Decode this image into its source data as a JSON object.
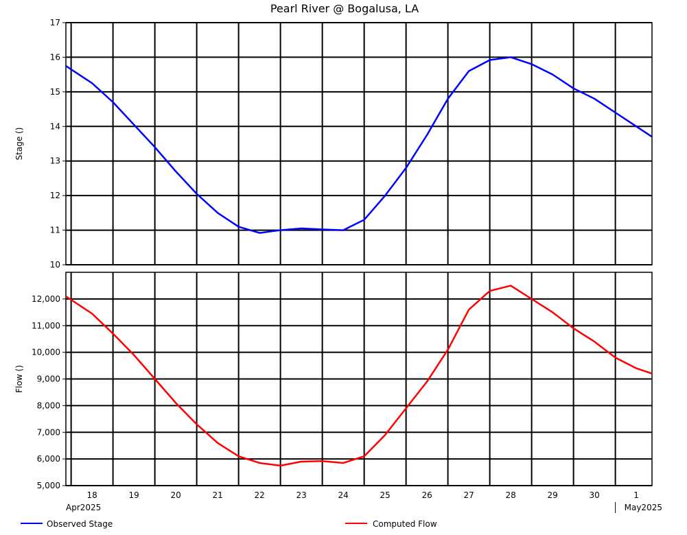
{
  "chart_data": {
    "type": "line",
    "title": "Pearl River @ Bogalusa, LA",
    "x_axis": {
      "day_labels": [
        "18",
        "19",
        "20",
        "21",
        "22",
        "23",
        "24",
        "25",
        "26",
        "27",
        "28",
        "29",
        "30",
        "1"
      ],
      "month_labels": [
        "Apr2025",
        "May2025"
      ],
      "range": [
        "2025-04-17T21:00",
        "2025-05-01T21:00"
      ]
    },
    "panels": [
      {
        "ylabel": "Stage ()",
        "ylim": [
          10,
          17
        ],
        "yticks": [
          10,
          11,
          12,
          13,
          14,
          15,
          16,
          17
        ],
        "ytick_labels": [
          "10",
          "11",
          "12",
          "13",
          "14",
          "15",
          "16",
          "17"
        ],
        "grid": true,
        "series": [
          {
            "name": "Observed Stage",
            "color": "#0000ff",
            "x": [
              "2025-04-17T21:00",
              "2025-04-18T12:00",
              "2025-04-19T00:00",
              "2025-04-19T12:00",
              "2025-04-20T00:00",
              "2025-04-20T12:00",
              "2025-04-21T00:00",
              "2025-04-21T12:00",
              "2025-04-22T00:00",
              "2025-04-22T12:00",
              "2025-04-23T00:00",
              "2025-04-23T12:00",
              "2025-04-24T00:00",
              "2025-04-24T12:00",
              "2025-04-25T00:00",
              "2025-04-25T12:00",
              "2025-04-26T00:00",
              "2025-04-26T12:00",
              "2025-04-27T00:00",
              "2025-04-27T12:00",
              "2025-04-28T00:00",
              "2025-04-28T12:00",
              "2025-04-29T00:00",
              "2025-04-29T12:00",
              "2025-04-30T00:00",
              "2025-04-30T12:00",
              "2025-05-01T00:00",
              "2025-05-01T12:00",
              "2025-05-01T21:00"
            ],
            "y": [
              15.75,
              15.25,
              14.7,
              14.05,
              13.4,
              12.7,
              12.05,
              11.5,
              11.1,
              10.92,
              11.0,
              11.05,
              11.02,
              11.0,
              11.3,
              12.0,
              12.8,
              13.75,
              14.8,
              15.6,
              15.92,
              16.0,
              15.8,
              15.5,
              15.1,
              14.8,
              14.4,
              14.0,
              13.7
            ]
          }
        ]
      },
      {
        "ylabel": "Flow ()",
        "ylim": [
          5000,
          13000
        ],
        "yticks": [
          5000,
          6000,
          7000,
          8000,
          9000,
          10000,
          11000,
          12000
        ],
        "ytick_labels": [
          "5,000",
          "6,000",
          "7,000",
          "8,000",
          "9,000",
          "10,000",
          "11,000",
          "12,000"
        ],
        "grid": true,
        "series": [
          {
            "name": "Computed Flow",
            "color": "#ff0000",
            "x": [
              "2025-04-17T21:00",
              "2025-04-18T12:00",
              "2025-04-19T00:00",
              "2025-04-19T12:00",
              "2025-04-20T00:00",
              "2025-04-20T12:00",
              "2025-04-21T00:00",
              "2025-04-21T12:00",
              "2025-04-22T00:00",
              "2025-04-22T12:00",
              "2025-04-23T00:00",
              "2025-04-23T12:00",
              "2025-04-24T00:00",
              "2025-04-24T12:00",
              "2025-04-25T00:00",
              "2025-04-25T12:00",
              "2025-04-26T00:00",
              "2025-04-26T12:00",
              "2025-04-27T00:00",
              "2025-04-27T12:00",
              "2025-04-28T00:00",
              "2025-04-28T12:00",
              "2025-04-29T00:00",
              "2025-04-29T12:00",
              "2025-04-30T00:00",
              "2025-04-30T12:00",
              "2025-05-01T00:00",
              "2025-05-01T12:00",
              "2025-05-01T21:00"
            ],
            "y": [
              12100,
              11450,
              10700,
              9900,
              9000,
              8100,
              7300,
              6600,
              6100,
              5850,
              5750,
              5900,
              5920,
              5850,
              6100,
              6900,
              7900,
              8900,
              10100,
              11600,
              12300,
              12500,
              12000,
              11500,
              10900,
              10400,
              9800,
              9400,
              9200
            ]
          }
        ]
      }
    ],
    "legend": {
      "placement": "bottom",
      "entries": [
        {
          "label": "Observed Stage",
          "color": "#0000ff"
        },
        {
          "label": "Computed Flow",
          "color": "#ff0000"
        }
      ]
    }
  }
}
